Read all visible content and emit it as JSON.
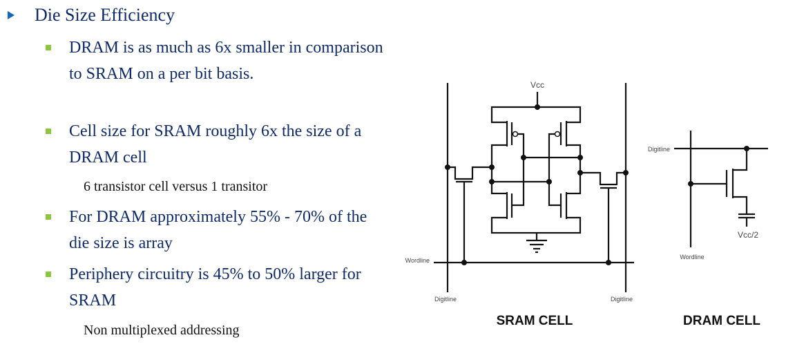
{
  "slide": {
    "heading": "Die Size Efficiency",
    "items": [
      {
        "text": "DRAM is as much as 6x smaller in comparison to SRAM on a per bit basis."
      },
      {
        "text": "Cell size for SRAM roughly 6x the size of a DRAM cell",
        "sub": "6 transistor cell versus 1 transitor"
      },
      {
        "text": "For DRAM approximately 55% - 70% of the die size is array"
      },
      {
        "text": "Periphery circuitry is 45% to 50% larger for SRAM",
        "sub": "Non multiplexed addressing"
      }
    ],
    "colors": {
      "text": "#0e2a6b",
      "level1_bullet": "#1565c0",
      "level2_bullet": "#8cc63f"
    }
  },
  "diagram": {
    "sram": {
      "title": "SRAM CELL",
      "vcc": "Vcc",
      "wordline": "Wordline",
      "digitline_left": "Digitline",
      "digitline_right": "Digitline"
    },
    "dram": {
      "title": "DRAM CELL",
      "digitline": "Digitline",
      "wordline": "Wordline",
      "vcc_half": "Vcc/2"
    }
  }
}
